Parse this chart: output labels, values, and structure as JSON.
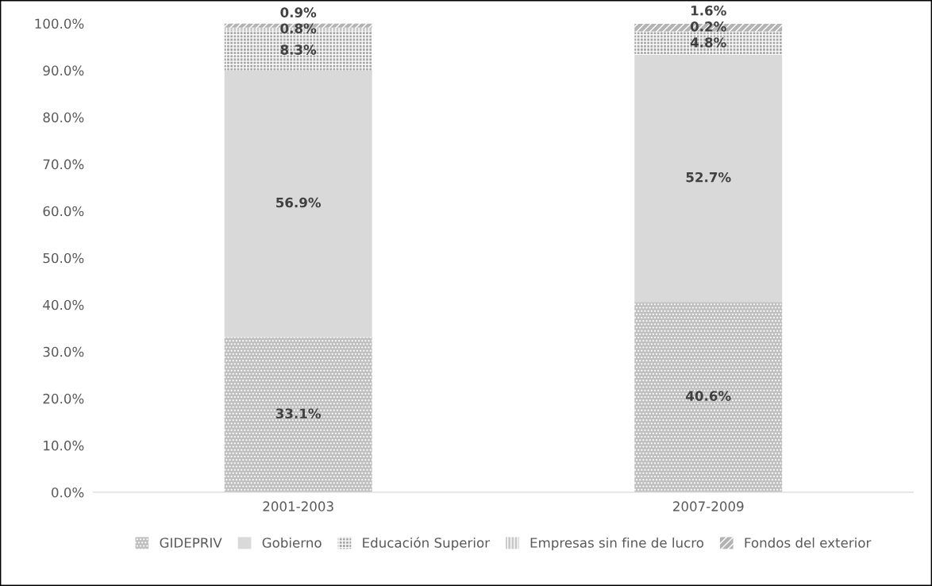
{
  "chart_data": {
    "type": "bar",
    "stacked": true,
    "categories": [
      "2001-2003",
      "2007-2009"
    ],
    "series": [
      {
        "name": "GIDEPRIV",
        "color": "#bfbfbf",
        "values": [
          33.1,
          40.6
        ],
        "value_labels": [
          "33.1%",
          "40.6%"
        ]
      },
      {
        "name": "Gobierno",
        "color": "#d9d9d9",
        "values": [
          56.9,
          52.7
        ],
        "value_labels": [
          "56.9%",
          "52.7%"
        ]
      },
      {
        "name": "Educación Superior",
        "color": "#a6a6a6",
        "values": [
          8.3,
          4.8
        ],
        "value_labels": [
          "8.3%",
          "4.8%"
        ]
      },
      {
        "name": "Empresas sin fine de lucro",
        "color": "#c8c8c8",
        "values": [
          0.8,
          0.2
        ],
        "value_labels": [
          "0.8%",
          "0.2%"
        ]
      },
      {
        "name": "Fondos del exterior",
        "color": "#b3b3b3",
        "values": [
          0.9,
          1.6
        ],
        "value_labels": [
          "0.9%",
          "1.6%"
        ]
      }
    ],
    "ylim": [
      0,
      100
    ],
    "yticks": [
      {
        "value": 0,
        "label": "0.0%"
      },
      {
        "value": 10,
        "label": "10.0%"
      },
      {
        "value": 20,
        "label": "20.0%"
      },
      {
        "value": 30,
        "label": "30.0%"
      },
      {
        "value": 40,
        "label": "40.0%"
      },
      {
        "value": 50,
        "label": "50.0%"
      },
      {
        "value": 60,
        "label": "60.0%"
      },
      {
        "value": 70,
        "label": "70.0%"
      },
      {
        "value": 80,
        "label": "80.0%"
      },
      {
        "value": 90,
        "label": "90.0%"
      },
      {
        "value": 100,
        "label": "100.0%"
      }
    ],
    "legend": "bottom"
  }
}
